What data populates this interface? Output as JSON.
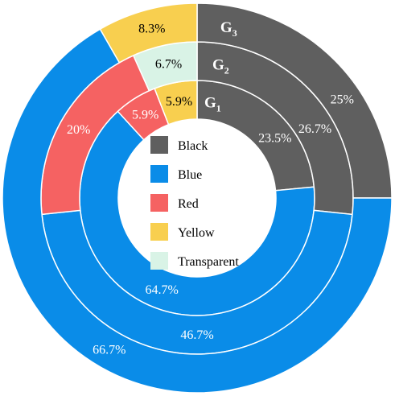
{
  "chart_data": {
    "type": "pie",
    "subtype": "nested-donut",
    "categories": [
      "Black",
      "Blue",
      "Red",
      "Yellow",
      "Transparent"
    ],
    "colors": {
      "Black": "#5f5f5f",
      "Blue": "#0a8ce8",
      "Red": "#f56262",
      "Yellow": "#f8cf4f",
      "Transparent": "#d9f3e6"
    },
    "rings": [
      {
        "name": "G",
        "subscript": "1",
        "slices": [
          {
            "category": "Black",
            "value": 23.5,
            "label": "23.5%"
          },
          {
            "category": "Blue",
            "value": 64.7,
            "label": "64.7%"
          },
          {
            "category": "Red",
            "value": 5.9,
            "label": "5.9%"
          },
          {
            "category": "Yellow",
            "value": 5.9,
            "label": "5.9%"
          }
        ]
      },
      {
        "name": "G",
        "subscript": "2",
        "slices": [
          {
            "category": "Black",
            "value": 26.7,
            "label": "26.7%"
          },
          {
            "category": "Blue",
            "value": 46.7,
            "label": "46.7%"
          },
          {
            "category": "Red",
            "value": 20,
            "label": "20%"
          },
          {
            "category": "Transparent",
            "value": 6.7,
            "label": "6.7%"
          }
        ]
      },
      {
        "name": "G",
        "subscript": "3",
        "slices": [
          {
            "category": "Black",
            "value": 25,
            "label": "25%"
          },
          {
            "category": "Blue",
            "value": 66.7,
            "label": "66.7%"
          },
          {
            "category": "Yellow",
            "value": 8.3,
            "label": "8.3%"
          }
        ]
      }
    ],
    "legend": [
      "Black",
      "Blue",
      "Red",
      "Yellow",
      "Transparent"
    ],
    "legend_position": "center"
  }
}
